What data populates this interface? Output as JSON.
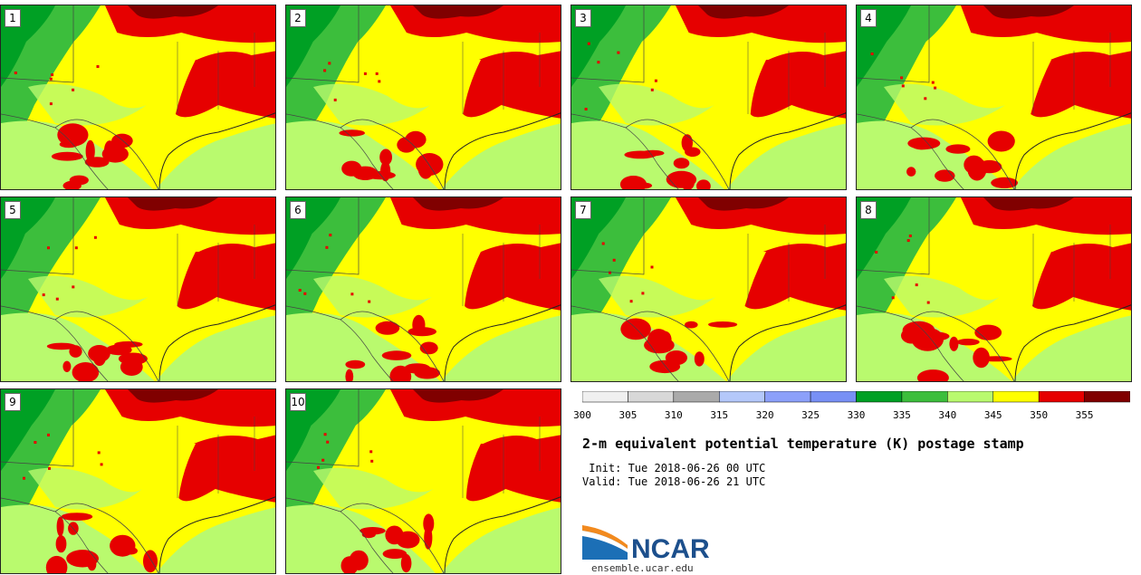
{
  "panels": [
    {
      "label": "1",
      "variant": 0
    },
    {
      "label": "2",
      "variant": 1
    },
    {
      "label": "3",
      "variant": 2
    },
    {
      "label": "4",
      "variant": 3
    },
    {
      "label": "5",
      "variant": 4
    },
    {
      "label": "6",
      "variant": 5
    },
    {
      "label": "7",
      "variant": 6
    },
    {
      "label": "8",
      "variant": 7
    },
    {
      "label": "9",
      "variant": 8
    },
    {
      "label": "10",
      "variant": 9
    }
  ],
  "colorbar": {
    "boundaries": [
      300,
      305,
      310,
      315,
      320,
      325,
      330,
      335,
      340,
      345,
      350,
      355,
      360
    ],
    "tick_labels": [
      "300",
      "305",
      "310",
      "315",
      "320",
      "325",
      "330",
      "335",
      "340",
      "345",
      "350",
      "355"
    ],
    "colors": [
      "#f0f0f0",
      "#d8d8d8",
      "#aaaaaa",
      "#b4c8fa",
      "#8ca0fa",
      "#7890f5",
      "#00a024",
      "#3cbe3c",
      "#b9fa6e",
      "#ffff00",
      "#e60000",
      "#800000"
    ]
  },
  "title": "2-m equivalent potential temperature (K) postage stamp",
  "init_line": " Init: Tue 2018-06-26 00 UTC",
  "valid_line": "Valid: Tue 2018-06-26 21 UTC",
  "logo_text": "NCAR",
  "site": "ensemble.ucar.edu",
  "map_colors": {
    "deep_green": "#00a024",
    "green": "#3cbe3c",
    "light_green": "#b9fa6e",
    "yellow": "#ffff00",
    "red": "#e60000",
    "dark_red": "#800000",
    "boundary": "#444444"
  }
}
